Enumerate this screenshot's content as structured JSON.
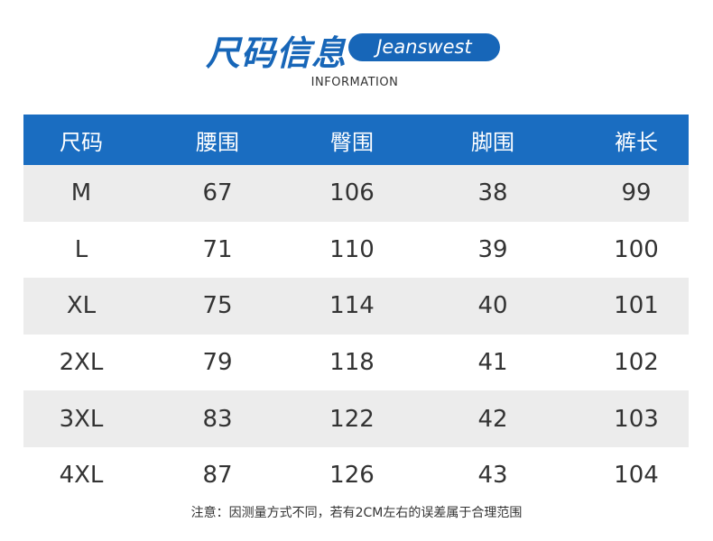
{
  "header": {
    "title": "尺码信息",
    "brand": "Jeanswest",
    "subtitle": "INFORMATION"
  },
  "table": {
    "columns": [
      "尺码",
      "腰围",
      "臀围",
      "脚围",
      "裤长"
    ],
    "rows": [
      [
        "M",
        67,
        106,
        38,
        99
      ],
      [
        "L",
        71,
        110,
        39,
        100
      ],
      [
        "XL",
        75,
        114,
        40,
        101
      ],
      [
        "2XL",
        79,
        118,
        41,
        102
      ],
      [
        "3XL",
        83,
        122,
        42,
        103
      ],
      [
        "4XL",
        87,
        126,
        43,
        104
      ]
    ]
  },
  "note": "注意：因测量方式不同，若有2CM左右的误差属于合理范围"
}
